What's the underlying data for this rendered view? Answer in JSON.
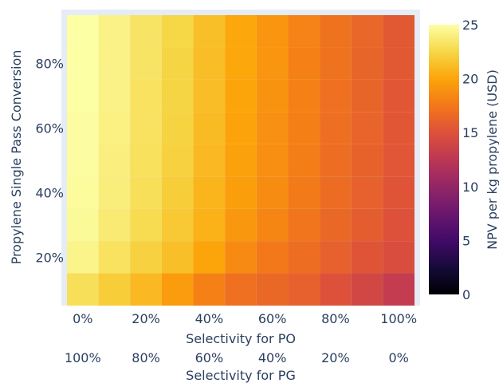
{
  "chart_data": {
    "type": "heatmap",
    "x_axis": {
      "title": "Selectivity for PO",
      "tick_labels": [
        "0%",
        "20%",
        "40%",
        "60%",
        "80%",
        "100%"
      ],
      "tick_values": [
        0,
        20,
        40,
        60,
        80,
        100
      ],
      "range": [
        -5,
        105
      ]
    },
    "x2_axis": {
      "title": "Selectivity for PG",
      "tick_labels": [
        "100%",
        "80%",
        "60%",
        "40%",
        "20%",
        "0%"
      ]
    },
    "y_axis": {
      "title": "Propylene Single Pass Conversion",
      "tick_labels": [
        "20%",
        "40%",
        "60%",
        "80%"
      ],
      "tick_values": [
        20,
        40,
        60,
        80
      ],
      "range": [
        5,
        95
      ]
    },
    "colorbar": {
      "title": "NPV per kg propylene (USD)",
      "tick_labels": [
        "0",
        "5",
        "10",
        "15",
        "20",
        "25"
      ],
      "tick_values": [
        0,
        5,
        10,
        15,
        20,
        25
      ],
      "range": [
        0,
        25
      ],
      "colorscale": "inferno"
    },
    "x": [
      0,
      10,
      20,
      30,
      40,
      50,
      60,
      70,
      80,
      90,
      100
    ],
    "y": [
      10,
      20,
      30,
      40,
      50,
      60,
      70,
      80,
      90
    ],
    "z": [
      [
        23.0,
        22.0,
        21.0,
        19.5,
        18.0,
        17.0,
        16.5,
        16.0,
        15.0,
        14.0,
        13.0
      ],
      [
        24.3,
        23.2,
        22.2,
        21.3,
        20.0,
        18.5,
        17.5,
        16.8,
        16.0,
        15.2,
        14.6
      ],
      [
        24.7,
        23.7,
        22.8,
        21.8,
        20.6,
        19.3,
        18.3,
        17.3,
        16.5,
        15.8,
        15.0
      ],
      [
        24.8,
        23.9,
        23.0,
        22.0,
        20.8,
        19.6,
        18.6,
        17.6,
        16.7,
        16.0,
        15.2
      ],
      [
        24.9,
        24.0,
        23.1,
        22.2,
        21.0,
        19.8,
        18.8,
        17.8,
        16.8,
        16.1,
        15.3
      ],
      [
        24.9,
        24.1,
        23.2,
        22.3,
        21.1,
        19.9,
        18.9,
        17.9,
        16.9,
        16.2,
        15.4
      ],
      [
        25.0,
        24.2,
        23.2,
        22.4,
        21.2,
        20.0,
        19.0,
        18.0,
        17.0,
        16.3,
        15.4
      ],
      [
        25.0,
        24.2,
        23.3,
        22.4,
        21.2,
        20.1,
        19.1,
        18.0,
        17.1,
        16.3,
        15.5
      ],
      [
        25.0,
        24.2,
        23.3,
        22.5,
        21.3,
        20.1,
        19.1,
        18.1,
        17.1,
        16.4,
        15.5
      ]
    ]
  }
}
